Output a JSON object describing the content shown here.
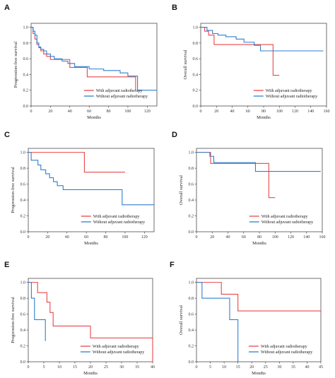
{
  "chart_data": [
    {
      "panel": "A",
      "type": "line",
      "xlabel": "Months",
      "ylabel": "Progression-free survival",
      "xlim": [
        0,
        130
      ],
      "ylim": [
        0,
        1.05
      ],
      "xticks": [
        0,
        20,
        40,
        60,
        80,
        100,
        120
      ],
      "yticks": [
        0.0,
        0.2,
        0.4,
        0.6,
        0.8,
        1.0
      ],
      "legend_position": "lower-right",
      "series": [
        {
          "name": "With adjuvant radiotherapy",
          "color": "#e8474a",
          "x": [
            0,
            2,
            4,
            6,
            8,
            10,
            13,
            16,
            20,
            24,
            40,
            58,
            100,
            108
          ],
          "y": [
            1.0,
            0.92,
            0.85,
            0.78,
            0.74,
            0.7,
            0.66,
            0.63,
            0.59,
            0.59,
            0.49,
            0.37,
            0.37,
            0.2
          ]
        },
        {
          "name": "Without adjuvant radiotherapy",
          "color": "#2f7fd1",
          "x": [
            0,
            2,
            4,
            6,
            8,
            10,
            13,
            16,
            20,
            24,
            32,
            38,
            45,
            60,
            75,
            92,
            100,
            110,
            130
          ],
          "y": [
            1.0,
            0.95,
            0.9,
            0.8,
            0.75,
            0.72,
            0.7,
            0.66,
            0.63,
            0.6,
            0.57,
            0.54,
            0.5,
            0.47,
            0.45,
            0.42,
            0.38,
            0.2,
            0.2
          ]
        }
      ]
    },
    {
      "panel": "B",
      "type": "line",
      "xlabel": "Months",
      "ylabel": "Overall survival",
      "xlim": [
        0,
        160
      ],
      "ylim": [
        0,
        1.05
      ],
      "xticks": [
        0,
        20,
        40,
        60,
        80,
        100,
        120,
        140,
        160
      ],
      "yticks": [
        0.0,
        0.2,
        0.4,
        0.6,
        0.8,
        1.0
      ],
      "legend_position": "lower-right",
      "series": [
        {
          "name": "With adjuvant radiotherapy",
          "color": "#e8474a",
          "x": [
            0,
            5,
            10,
            17,
            92,
            100
          ],
          "y": [
            1.0,
            0.95,
            0.9,
            0.78,
            0.39,
            0.39
          ]
        },
        {
          "name": "Without adjuvant radiotherapy",
          "color": "#2f7fd1",
          "x": [
            0,
            8,
            15,
            22,
            32,
            45,
            55,
            68,
            76,
            156
          ],
          "y": [
            1.0,
            0.96,
            0.92,
            0.9,
            0.88,
            0.85,
            0.81,
            0.77,
            0.7,
            0.7
          ]
        }
      ]
    },
    {
      "panel": "C",
      "type": "line",
      "xlabel": "Months",
      "ylabel": "Progression-free survival",
      "xlim": [
        0,
        130
      ],
      "ylim": [
        0,
        1.05
      ],
      "xticks": [
        0,
        20,
        40,
        60,
        80,
        100,
        120
      ],
      "yticks": [
        0.0,
        0.2,
        0.4,
        0.6,
        0.8,
        1.0
      ],
      "legend_position": "lower-right",
      "series": [
        {
          "name": "With adjuvant radiotherapy",
          "color": "#e8474a",
          "x": [
            0,
            58,
            100
          ],
          "y": [
            1.0,
            0.75,
            0.75
          ]
        },
        {
          "name": "Without adjuvant radiotherapy",
          "color": "#2f7fd1",
          "x": [
            0,
            3,
            10,
            13,
            18,
            22,
            26,
            30,
            36,
            97,
            130
          ],
          "y": [
            1.0,
            0.9,
            0.84,
            0.78,
            0.73,
            0.68,
            0.63,
            0.58,
            0.53,
            0.34,
            0.34
          ]
        }
      ]
    },
    {
      "panel": "D",
      "type": "line",
      "xlabel": "Months",
      "ylabel": "Overall survival",
      "xlim": [
        0,
        160
      ],
      "ylim": [
        0,
        1.05
      ],
      "xticks": [
        0,
        20,
        40,
        60,
        80,
        100,
        120,
        140,
        160
      ],
      "yticks": [
        0.0,
        0.2,
        0.4,
        0.6,
        0.8,
        1.0
      ],
      "legend_position": "lower-right",
      "series": [
        {
          "name": "With adjuvant radiotherapy",
          "color": "#e8474a",
          "x": [
            0,
            18,
            45,
            92,
            100
          ],
          "y": [
            1.0,
            0.86,
            0.86,
            0.43,
            0.43
          ]
        },
        {
          "name": "Without adjuvant radiotherapy",
          "color": "#2f7fd1",
          "x": [
            0,
            17,
            22,
            75,
            158
          ],
          "y": [
            1.0,
            0.95,
            0.87,
            0.76,
            0.76
          ]
        }
      ]
    },
    {
      "panel": "E",
      "type": "line",
      "xlabel": "Months",
      "ylabel": "Progression-free survival",
      "xlim": [
        0,
        40
      ],
      "ylim": [
        0,
        1.05
      ],
      "xticks": [
        0,
        5,
        10,
        15,
        20,
        25,
        30,
        35,
        40
      ],
      "yticks": [
        0.0,
        0.2,
        0.4,
        0.6,
        0.8,
        1.0
      ],
      "legend_position": "lower-right",
      "series": [
        {
          "name": "With adjuvant radiotherapy",
          "color": "#e8474a",
          "x": [
            0,
            3,
            6,
            7,
            8,
            20,
            40
          ],
          "y": [
            1.0,
            0.87,
            0.75,
            0.62,
            0.45,
            0.3,
            0.0
          ]
        },
        {
          "name": "Without adjuvant radiotherapy",
          "color": "#2f7fd1",
          "x": [
            0,
            1,
            2,
            5.5
          ],
          "y": [
            1.0,
            0.8,
            0.53,
            0.26
          ]
        }
      ]
    },
    {
      "panel": "F",
      "type": "line",
      "xlabel": "Months",
      "ylabel": "Overall survival",
      "xlim": [
        0,
        45
      ],
      "ylim": [
        0,
        1.05
      ],
      "xticks": [
        0,
        5,
        10,
        15,
        20,
        25,
        30,
        35,
        40,
        45
      ],
      "yticks": [
        0.0,
        0.2,
        0.4,
        0.6,
        0.8,
        1.0
      ],
      "legend_position": "lower-right",
      "series": [
        {
          "name": "With adjuvant radiotherapy",
          "color": "#e8474a",
          "x": [
            0,
            9,
            15,
            45
          ],
          "y": [
            1.0,
            0.85,
            0.64,
            0.64
          ]
        },
        {
          "name": "Without adjuvant radiotherapy",
          "color": "#2f7fd1",
          "x": [
            0,
            2,
            12,
            15
          ],
          "y": [
            1.0,
            0.8,
            0.53,
            0.0
          ]
        }
      ]
    }
  ]
}
